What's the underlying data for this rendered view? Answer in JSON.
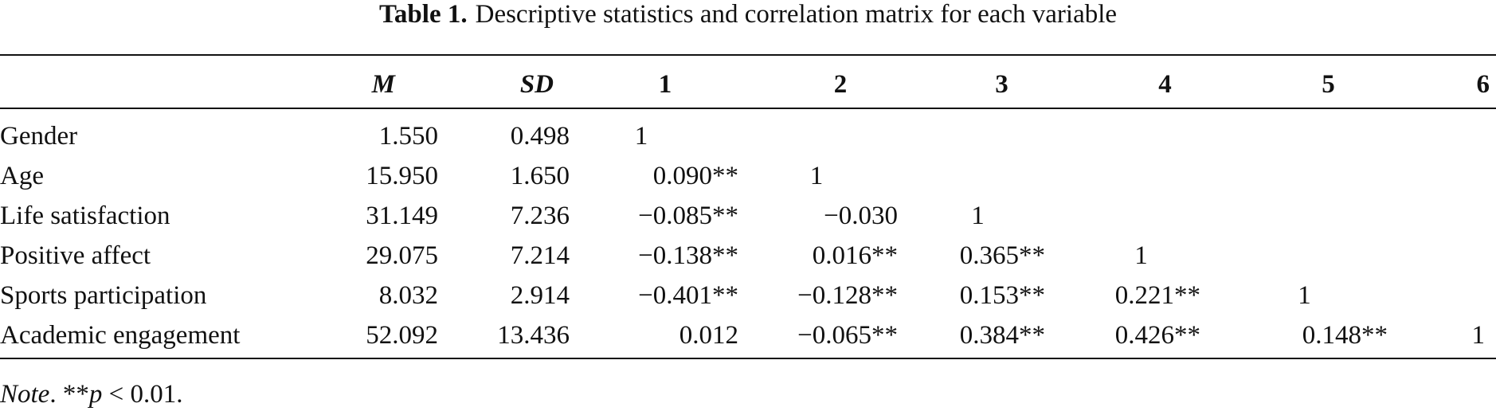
{
  "caption": {
    "label": "Table 1.",
    "text": "Descriptive statistics and correlation matrix for each variable"
  },
  "headers": [
    "",
    "M",
    "SD",
    "1",
    "2",
    "3",
    "4",
    "5",
    "6"
  ],
  "rows": [
    {
      "variable": "Gender",
      "m": "1.550",
      "sd": "0.498",
      "c1": "1",
      "c2": "",
      "c3": "",
      "c4": "",
      "c5": "",
      "c6": ""
    },
    {
      "variable": "Age",
      "m": "15.950",
      "sd": "1.650",
      "c1": "0.090**",
      "c2": "1",
      "c3": "",
      "c4": "",
      "c5": "",
      "c6": ""
    },
    {
      "variable": "Life satisfaction",
      "m": "31.149",
      "sd": "7.236",
      "c1": "−0.085**",
      "c2": "−0.030",
      "c3": "1",
      "c4": "",
      "c5": "",
      "c6": ""
    },
    {
      "variable": "Positive affect",
      "m": "29.075",
      "sd": "7.214",
      "c1": "−0.138**",
      "c2": "0.016**",
      "c3": "0.365**",
      "c4": "1",
      "c5": "",
      "c6": ""
    },
    {
      "variable": "Sports participation",
      "m": "8.032",
      "sd": "2.914",
      "c1": "−0.401**",
      "c2": "−0.128**",
      "c3": "0.153**",
      "c4": "0.221**",
      "c5": "1",
      "c6": ""
    },
    {
      "variable": "Academic engagement",
      "m": "52.092",
      "sd": "13.436",
      "c1": "0.012",
      "c2": "−0.065**",
      "c3": "0.384**",
      "c4": "0.426**",
      "c5": "0.148**",
      "c6": "1"
    }
  ],
  "note": {
    "label": "Note",
    "sep": ". **",
    "p": "p",
    "rest": " < 0.01."
  }
}
